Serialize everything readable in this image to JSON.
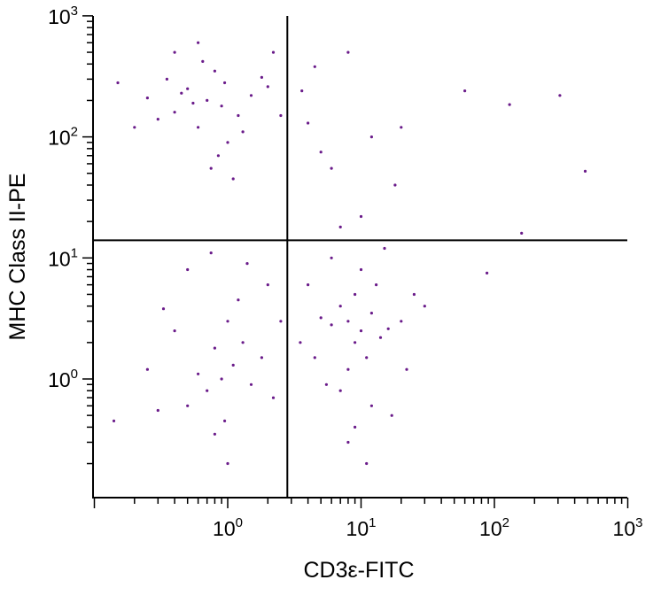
{
  "chart_data": {
    "type": "scatter",
    "title": "",
    "xlabel": "CD3ε-FITC",
    "ylabel": "MHC Class II-PE",
    "x_scale": "log",
    "y_scale": "log",
    "xlim": [
      0.1,
      1000
    ],
    "ylim": [
      0.01,
      1000
    ],
    "x_major_ticks": [
      {
        "value": 1,
        "base": "10",
        "exp": "0"
      },
      {
        "value": 10,
        "base": "10",
        "exp": "1"
      },
      {
        "value": 100,
        "base": "10",
        "exp": "2"
      },
      {
        "value": 1000,
        "base": "10",
        "exp": "3"
      }
    ],
    "y_major_ticks": [
      {
        "value": 1,
        "base": "10",
        "exp": "0"
      },
      {
        "value": 10,
        "base": "10",
        "exp": "1"
      },
      {
        "value": 100,
        "base": "10",
        "exp": "2"
      },
      {
        "value": 1000,
        "base": "10",
        "exp": "3"
      }
    ],
    "quadrant_gates": {
      "x": 2.8,
      "y": 14
    },
    "point_color": "#6a1b8a",
    "grid": false,
    "series": [
      {
        "values": [
          [
            0.7,
            200
          ],
          [
            0.5,
            250
          ],
          [
            0.9,
            180
          ],
          [
            1.2,
            150
          ],
          [
            0.35,
            300
          ],
          [
            0.6,
            120
          ],
          [
            1.5,
            220
          ],
          [
            0.8,
            350
          ],
          [
            0.4,
            160
          ],
          [
            1.0,
            90
          ],
          [
            0.25,
            210
          ],
          [
            2.0,
            260
          ],
          [
            0.65,
            420
          ],
          [
            1.3,
            110
          ],
          [
            0.55,
            190
          ],
          [
            0.85,
            70
          ],
          [
            0.3,
            140
          ],
          [
            1.8,
            310
          ],
          [
            0.45,
            230
          ],
          [
            0.95,
            280
          ],
          [
            0.15,
            280
          ],
          [
            0.2,
            120
          ],
          [
            2.5,
            150
          ],
          [
            0.75,
            55
          ],
          [
            1.1,
            45
          ],
          [
            0.6,
            600
          ],
          [
            0.4,
            500
          ],
          [
            2.2,
            500
          ],
          [
            3.6,
            240
          ],
          [
            4.5,
            380
          ],
          [
            4.0,
            130
          ],
          [
            5.0,
            75
          ],
          [
            6.0,
            55
          ],
          [
            8.0,
            500
          ],
          [
            12.0,
            100
          ],
          [
            20.0,
            120
          ],
          [
            60.0,
            240
          ],
          [
            130.0,
            185
          ],
          [
            310.0,
            220
          ],
          [
            480.0,
            52
          ],
          [
            18.0,
            40
          ],
          [
            10.0,
            22
          ],
          [
            7.0,
            18
          ],
          [
            160.0,
            16
          ],
          [
            8,
            3
          ],
          [
            10,
            2.5
          ],
          [
            9,
            2
          ],
          [
            12,
            3.5
          ],
          [
            7,
            4
          ],
          [
            11,
            1.5
          ],
          [
            6,
            2.8
          ],
          [
            14,
            2.2
          ],
          [
            9,
            5
          ],
          [
            8,
            1.2
          ],
          [
            13,
            6
          ],
          [
            5,
            3.2
          ],
          [
            16,
            2.6
          ],
          [
            10,
            8
          ],
          [
            7,
            0.8
          ],
          [
            20,
            3
          ],
          [
            4.5,
            1.5
          ],
          [
            12,
            0.6
          ],
          [
            9,
            0.4
          ],
          [
            25,
            5
          ],
          [
            6,
            10
          ],
          [
            15,
            12
          ],
          [
            8,
            0.3
          ],
          [
            11,
            0.2
          ],
          [
            4,
            6
          ],
          [
            22,
            1.2
          ],
          [
            30,
            4
          ],
          [
            5.5,
            0.9
          ],
          [
            17,
            0.5
          ],
          [
            3.5,
            2
          ],
          [
            88,
            7.5
          ],
          [
            0.9,
            1.0
          ],
          [
            1.1,
            1.3
          ],
          [
            0.7,
            0.8
          ],
          [
            1.3,
            2.0
          ],
          [
            0.8,
            1.8
          ],
          [
            0.6,
            1.1
          ],
          [
            1.5,
            0.9
          ],
          [
            1.0,
            3.0
          ],
          [
            0.5,
            0.6
          ],
          [
            1.8,
            1.5
          ],
          [
            0.4,
            2.5
          ],
          [
            2.2,
            0.7
          ],
          [
            0.95,
            0.45
          ],
          [
            1.2,
            4.5
          ],
          [
            0.3,
            0.55
          ],
          [
            0.14,
            0.45
          ],
          [
            0.33,
            3.8
          ],
          [
            1.0,
            0.2
          ],
          [
            2.0,
            6
          ],
          [
            0.5,
            8
          ],
          [
            0.75,
            11
          ],
          [
            1.4,
            9
          ],
          [
            2.5,
            3
          ],
          [
            0.25,
            1.2
          ],
          [
            0.8,
            0.35
          ]
        ]
      }
    ]
  }
}
